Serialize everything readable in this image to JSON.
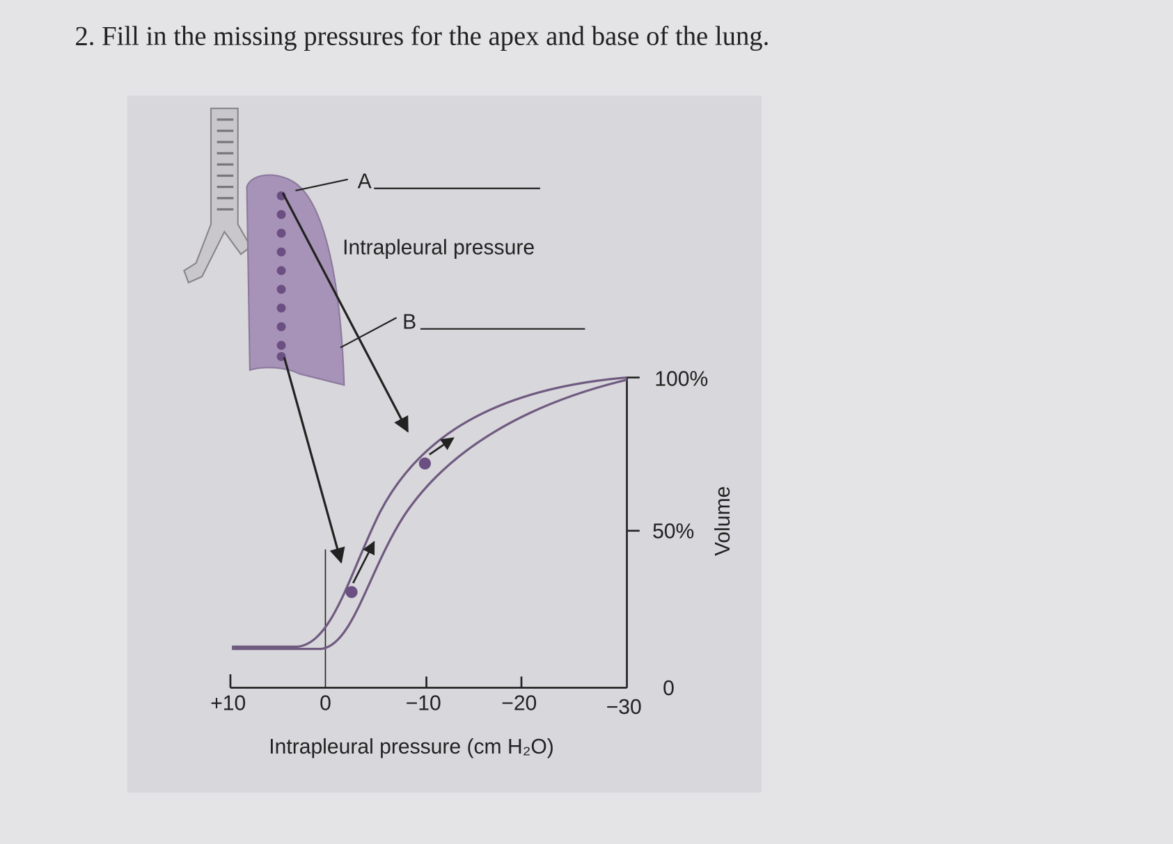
{
  "question": "2. Fill in the missing pressures for the apex and base of the lung.",
  "figure": {
    "labels": {
      "a": "A",
      "b": "B",
      "intrapleural": "Intrapleural pressure"
    },
    "x_axis": {
      "title": "Intrapleural pressure (cm H₂O)",
      "ticks": [
        "+10",
        "0",
        "−10",
        "−20",
        "−30"
      ]
    },
    "y_axis": {
      "title": "Volume",
      "ticks": [
        "100%",
        "50%",
        "0"
      ]
    }
  }
}
